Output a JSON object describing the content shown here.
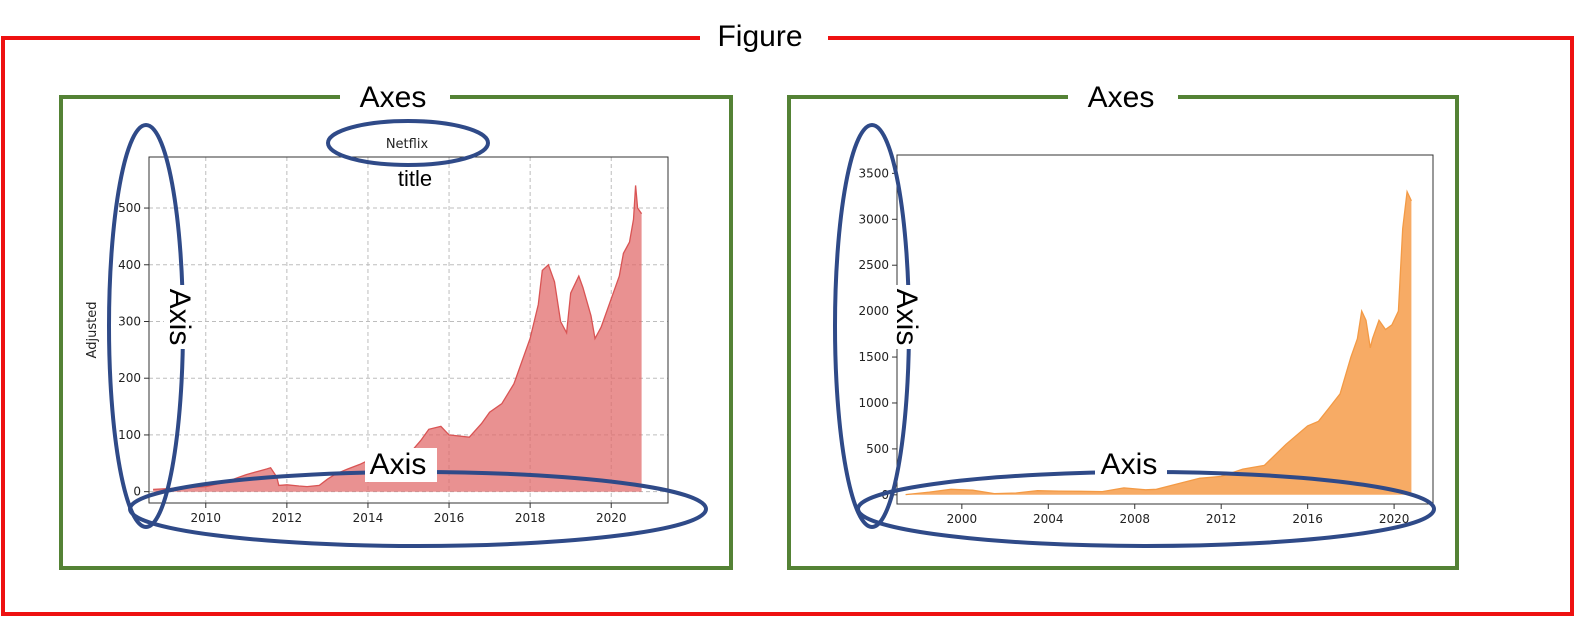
{
  "figure": {
    "label": "Figure",
    "border_color": "#ee1111"
  },
  "axes_left": {
    "label": "Axes",
    "axis_label_y": "Axis",
    "axis_label_x": "Axis",
    "title_callout": "title",
    "border_color": "#548235"
  },
  "axes_right": {
    "label": "Axes",
    "axis_label_y": "Axis",
    "axis_label_x": "Axis",
    "border_color": "#548235"
  },
  "callout_color": "#2f4a88",
  "chart_data": [
    {
      "type": "area",
      "title": "Netflix",
      "xlabel": "",
      "ylabel": "Adjusted",
      "xlim": [
        2008.6,
        2021.4
      ],
      "ylim": [
        -20,
        590
      ],
      "grid": true,
      "color": "#e06666",
      "x_ticks": [
        2010,
        2012,
        2014,
        2016,
        2018,
        2020
      ],
      "x_tick_labels": [
        "2010",
        "2012",
        "2014",
        "2016",
        "2018",
        "2020"
      ],
      "y_ticks": [
        0,
        100,
        200,
        300,
        400,
        500
      ],
      "y_tick_labels": [
        "0",
        "100",
        "200",
        "300",
        "400",
        "500"
      ],
      "x": [
        2008.7,
        2009.0,
        2009.5,
        2010.0,
        2010.5,
        2010.8,
        2011.0,
        2011.3,
        2011.5,
        2011.6,
        2011.75,
        2011.8,
        2012.0,
        2012.3,
        2012.5,
        2012.8,
        2013.0,
        2013.2,
        2013.5,
        2013.8,
        2014.0,
        2014.3,
        2014.5,
        2014.8,
        2015.0,
        2015.3,
        2015.5,
        2015.8,
        2016.0,
        2016.5,
        2016.8,
        2017.0,
        2017.3,
        2017.6,
        2018.0,
        2018.2,
        2018.3,
        2018.45,
        2018.6,
        2018.75,
        2018.9,
        2019.0,
        2019.2,
        2019.3,
        2019.5,
        2019.6,
        2019.75,
        2019.9,
        2020.0,
        2020.2,
        2020.3,
        2020.45,
        2020.55,
        2020.6,
        2020.65,
        2020.75
      ],
      "values": [
        4,
        5,
        7,
        9,
        17,
        25,
        30,
        36,
        40,
        42,
        26,
        11,
        12,
        10,
        9,
        11,
        22,
        31,
        40,
        48,
        55,
        60,
        64,
        57,
        65,
        90,
        110,
        115,
        100,
        96,
        120,
        140,
        155,
        190,
        270,
        330,
        390,
        400,
        370,
        300,
        280,
        350,
        380,
        360,
        310,
        270,
        290,
        320,
        340,
        380,
        420,
        440,
        480,
        540,
        500,
        490
      ]
    },
    {
      "type": "area",
      "title": "",
      "xlabel": "",
      "ylabel": "",
      "xlim": [
        1997,
        2021.8
      ],
      "ylim": [
        -100,
        3700
      ],
      "grid": false,
      "color": "#f6a254",
      "x_ticks": [
        2000,
        2004,
        2008,
        2012,
        2016,
        2020
      ],
      "x_tick_labels": [
        "2000",
        "2004",
        "2008",
        "2012",
        "2016",
        "2020"
      ],
      "y_ticks": [
        0,
        500,
        1000,
        1500,
        2000,
        2500,
        3000,
        3500
      ],
      "y_tick_labels": [
        "0",
        "500",
        "1000",
        "1500",
        "2000",
        "2500",
        "3000",
        "3500"
      ],
      "x": [
        1997.4,
        1998.5,
        1999.5,
        2000.5,
        2001.5,
        2002.5,
        2003.5,
        2004.5,
        2005.5,
        2006.5,
        2007.5,
        2008.5,
        2009.0,
        2010.0,
        2011.0,
        2012.0,
        2013.0,
        2014.0,
        2015.0,
        2016.0,
        2016.5,
        2017.0,
        2017.5,
        2018.0,
        2018.3,
        2018.5,
        2018.7,
        2018.9,
        2019.0,
        2019.3,
        2019.6,
        2019.9,
        2020.2,
        2020.4,
        2020.6,
        2020.8
      ],
      "values": [
        2,
        30,
        60,
        50,
        12,
        20,
        45,
        40,
        38,
        35,
        75,
        55,
        60,
        120,
        180,
        200,
        280,
        320,
        550,
        750,
        800,
        950,
        1100,
        1500,
        1700,
        2000,
        1900,
        1600,
        1700,
        1900,
        1800,
        1850,
        2000,
        2900,
        3300,
        3200
      ]
    }
  ]
}
